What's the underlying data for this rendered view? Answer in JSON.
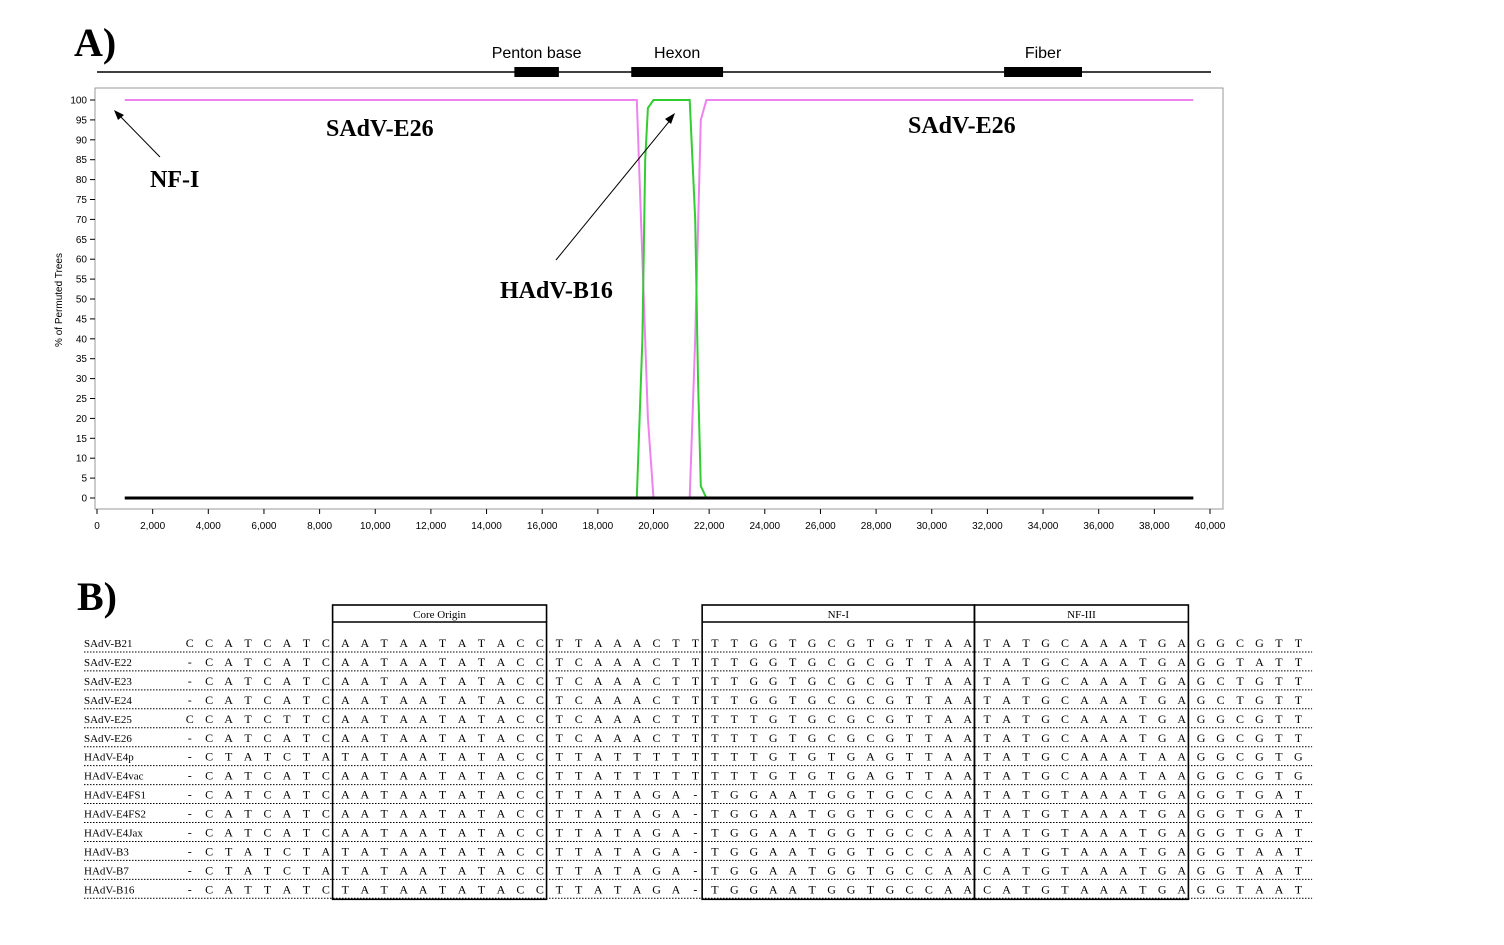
{
  "panel_a": {
    "label": "A)",
    "genome_map": {
      "genes": [
        {
          "name": "Penton base",
          "start": 15000,
          "end": 16600
        },
        {
          "name": "Hexon",
          "start": 19200,
          "end": 22500
        },
        {
          "name": "Fiber",
          "start": 32600,
          "end": 35400
        }
      ]
    },
    "annotations": {
      "left_parent": "SAdV-E26",
      "right_parent": "SAdV-E26",
      "nf1_pointer": "NF-I",
      "recombinant": "HAdV-B16"
    }
  },
  "chart_data": {
    "type": "line",
    "ylabel": "% of Permuted Trees",
    "xlim": [
      0,
      40000
    ],
    "ylim": [
      0,
      100
    ],
    "xticks": [
      "0",
      "2,000",
      "4,000",
      "6,000",
      "8,000",
      "10,000",
      "12,000",
      "14,000",
      "16,000",
      "18,000",
      "20,000",
      "22,000",
      "24,000",
      "26,000",
      "28,000",
      "30,000",
      "32,000",
      "34,000",
      "36,000",
      "38,000",
      "40,000"
    ],
    "xtick_values": [
      0,
      2000,
      4000,
      6000,
      8000,
      10000,
      12000,
      14000,
      16000,
      18000,
      20000,
      22000,
      24000,
      26000,
      28000,
      30000,
      32000,
      34000,
      36000,
      38000,
      40000
    ],
    "yticks": [
      "0",
      "5",
      "10",
      "15",
      "20",
      "25",
      "30",
      "35",
      "40",
      "45",
      "50",
      "55",
      "60",
      "65",
      "70",
      "75",
      "80",
      "85",
      "90",
      "95",
      "100"
    ],
    "ytick_values": [
      0,
      5,
      10,
      15,
      20,
      25,
      30,
      35,
      40,
      45,
      50,
      55,
      60,
      65,
      70,
      75,
      80,
      85,
      90,
      95,
      100
    ],
    "grid": false,
    "series": [
      {
        "color": "#ee82ee",
        "x": [
          1000,
          19400,
          19600,
          19800,
          20000,
          21300,
          21500,
          21700,
          21900,
          39400
        ],
        "y": [
          100,
          100,
          60,
          20,
          0,
          0,
          40,
          95,
          100,
          100
        ]
      },
      {
        "color": "#33cc33",
        "x": [
          1000,
          19400,
          19600,
          19700,
          19800,
          20000,
          21300,
          21500,
          21600,
          21700,
          21900,
          39400
        ],
        "y": [
          0,
          0,
          40,
          85,
          98,
          100,
          100,
          70,
          30,
          3,
          0,
          0
        ]
      },
      {
        "color": "#000000",
        "x": [
          1000,
          39400
        ],
        "y": [
          0,
          0
        ]
      }
    ]
  },
  "panel_b": {
    "label": "B)",
    "regions": [
      "Core Origin",
      "NF-I",
      "NF-III"
    ],
    "rows": [
      {
        "name": "SAdV-B21",
        "pre": "CCATCATC",
        "core": "AATAATATACC",
        "mid": "TTAAACTT",
        "nf1": "TTGGTGCGTGTTAA",
        "nf3": "TATGCAAATGA",
        "post": "GGCGTT"
      },
      {
        "name": "SAdV-E22",
        "pre": "-CATCATC",
        "core": "AATAATATACC",
        "mid": "TCAAACTT",
        "nf1": "TTGGTGCGCGTTAA",
        "nf3": "TATGCAAATGA",
        "post": "GGTATT"
      },
      {
        "name": "SAdV-E23",
        "pre": "-CATCATC",
        "core": "AATAATATACC",
        "mid": "TCAAACTT",
        "nf1": "TTGGTGCGCGTTAA",
        "nf3": "TATGCAAATGA",
        "post": "GCTGTT"
      },
      {
        "name": "SAdV-E24",
        "pre": "-CATCATC",
        "core": "AATAATATACC",
        "mid": "TCAAACTT",
        "nf1": "TTGGTGCGCGTTAA",
        "nf3": "TATGCAAATGA",
        "post": "GCTGTT"
      },
      {
        "name": "SAdV-E25",
        "pre": "CCATCTTC",
        "core": "AATAATATACC",
        "mid": "TCAAACTT",
        "nf1": "TTTGTGCGCGTTAA",
        "nf3": "TATGCAAATGA",
        "post": "GGCGTT"
      },
      {
        "name": "SAdV-E26",
        "pre": "-CATCATC",
        "core": "AATAATATACC",
        "mid": "TCAAACTT",
        "nf1": "TTTGTGCGCGTTAA",
        "nf3": "TATGCAAATGA",
        "post": "GGCGTT"
      },
      {
        "name": "HAdV-E4p",
        "pre": "-CTATCTA",
        "core": "TATAATATACC",
        "mid": "TTATTTTT",
        "nf1": "TTTGTGTGAGTTAA",
        "nf3": "TATGCAAATAA",
        "post": "GGCGTG"
      },
      {
        "name": "HAdV-E4vac",
        "pre": "-CATCATC",
        "core": "AATAATATACC",
        "mid": "TTATTTTT",
        "nf1": "TTTGTGTGAGTTAA",
        "nf3": "TATGCAAATAA",
        "post": "GGCGTG"
      },
      {
        "name": "HAdV-E4FS1",
        "pre": "-CATCATC",
        "core": "AATAATATACC",
        "mid": "TTATAGA-",
        "nf1": "TGGAATGGTGCCAA",
        "nf3": "TATGTAAATGA",
        "post": "GGTGAT"
      },
      {
        "name": "HAdV-E4FS2",
        "pre": "-CATCATC",
        "core": "AATAATATACC",
        "mid": "TTATAGA-",
        "nf1": "TGGAATGGTGCCAA",
        "nf3": "TATGTAAATGA",
        "post": "GGTGAT"
      },
      {
        "name": "HAdV-E4Jax",
        "pre": "-CATCATC",
        "core": "AATAATATACC",
        "mid": "TTATAGA-",
        "nf1": "TGGAATGGTGCCAA",
        "nf3": "TATGTAAATGA",
        "post": "GGTGAT"
      },
      {
        "name": "HAdV-B3",
        "pre": "-CTATCTA",
        "core": "TATAATATACC",
        "mid": "TTATAGA-",
        "nf1": "TGGAATGGTGCCAA",
        "nf3": "CATGTAAATGA",
        "post": "GGTAAT"
      },
      {
        "name": "HAdV-B7",
        "pre": "-CTATCTA",
        "core": "TATAATATACC",
        "mid": "TTATAGA-",
        "nf1": "TGGAATGGTGCCAA",
        "nf3": "CATGTAAATGA",
        "post": "GGTAAT"
      },
      {
        "name": "HAdV-B16",
        "pre": "-CATTATC",
        "core": "TATAATATACC",
        "mid": "TTATAGA-",
        "nf1": "TGGAATGGTGCCAA",
        "nf3": "CATGTAAATGA",
        "post": "GGTAAT"
      }
    ]
  }
}
